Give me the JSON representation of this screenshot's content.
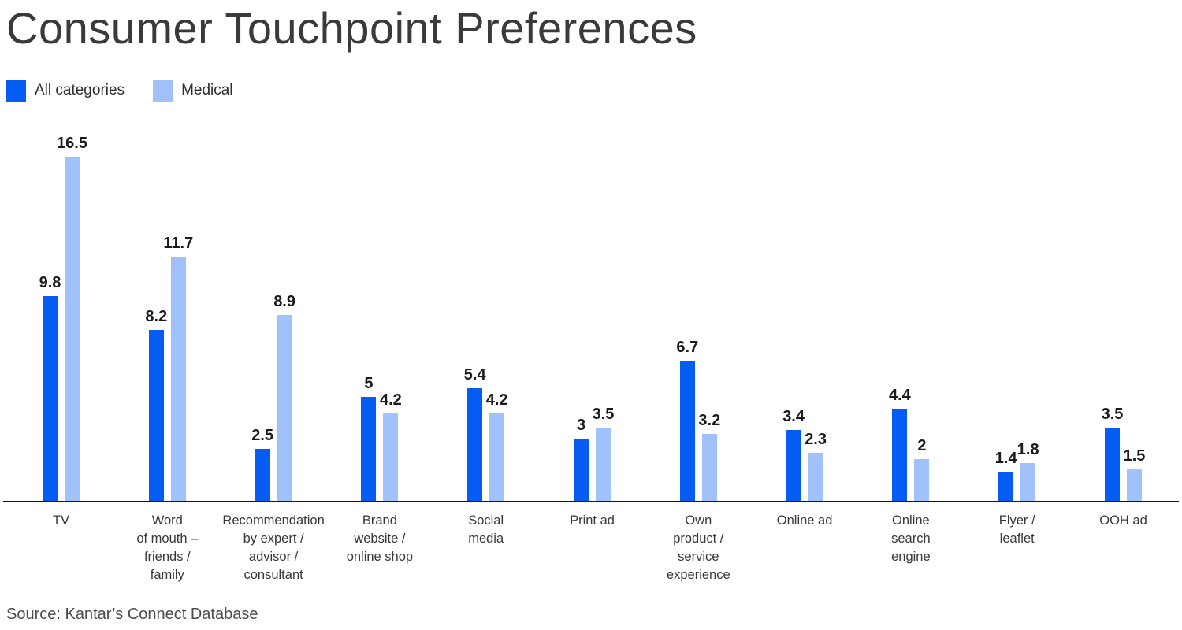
{
  "title": "Consumer Touchpoint Preferences",
  "source": "Source: Kantar’s Connect Database",
  "legend": {
    "items": [
      {
        "label": "All categories",
        "color": "#055cf2"
      },
      {
        "label": "Medical",
        "color": "#a0c1fa"
      }
    ]
  },
  "chart_data": {
    "type": "bar",
    "title": "Consumer Touchpoint Preferences",
    "xlabel": "",
    "ylabel": "",
    "ylim": [
      0,
      18
    ],
    "grid": false,
    "legend_position": "top-left",
    "value_labels": true,
    "categories": [
      "TV",
      "Word of mouth – friends / family",
      "Recommendation by expert / advisor / consultant",
      "Brand website / online shop",
      "Social media",
      "Print ad",
      "Own product / service experience",
      "Online ad",
      "Online search engine",
      "Flyer / leaflet",
      "OOH ad"
    ],
    "category_labels_multiline": [
      "TV",
      "Word\nof mouth –\nfriends /\nfamily",
      "Recommendation\nby expert /\nadvisor /\nconsultant",
      "Brand\nwebsite /\nonline shop",
      "Social\nmedia",
      "Print ad",
      "Own\nproduct /\nservice\nexperience",
      "Online ad",
      "Online\nsearch\nengine",
      "Flyer /\nleaflet",
      "OOH ad"
    ],
    "series": [
      {
        "name": "All categories",
        "color": "#055cf2",
        "values": [
          9.8,
          8.2,
          2.5,
          5,
          5.4,
          3,
          6.7,
          3.4,
          4.4,
          1.4,
          3.5
        ]
      },
      {
        "name": "Medical",
        "color": "#a0c1fa",
        "values": [
          16.5,
          11.7,
          8.9,
          4.2,
          4.2,
          3.5,
          3.2,
          2.3,
          2,
          1.8,
          1.5
        ]
      }
    ]
  }
}
